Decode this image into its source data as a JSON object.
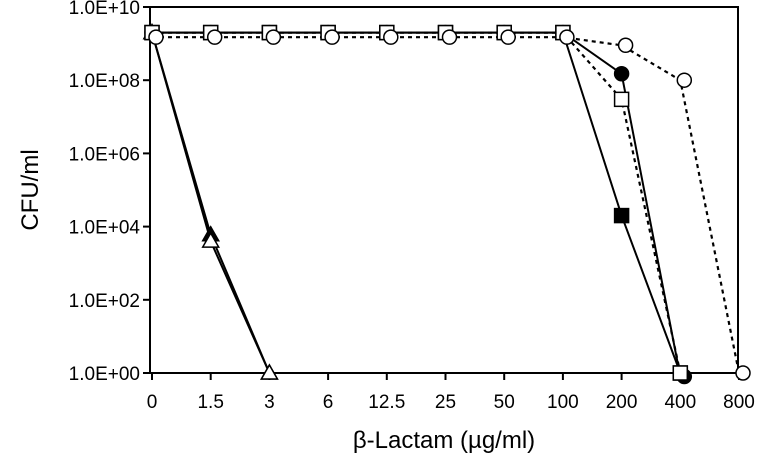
{
  "chart_data": {
    "type": "line",
    "title": "",
    "xlabel": "β-Lactam (µg/ml)",
    "ylabel": "CFU/ml",
    "x_scale": "categorical",
    "y_scale": "log",
    "categories": [
      "0",
      "1.5",
      "3",
      "6",
      "12.5",
      "25",
      "50",
      "100",
      "200",
      "400",
      "800"
    ],
    "ylim": [
      1,
      10000000000
    ],
    "y_ticks": [
      1,
      100,
      10000,
      1000000,
      100000000,
      10000000000
    ],
    "y_tick_labels": [
      "1.0E+00",
      "1.0E+02",
      "1.0E+04",
      "1.0E+06",
      "1.0E+08",
      "1.0E+10"
    ],
    "grid": false,
    "legend": "none",
    "series": [
      {
        "marker": "filled-square",
        "line": "solid",
        "points": [
          [
            0,
            2000000000.0
          ],
          [
            1,
            2000000000.0
          ],
          [
            2,
            2000000000.0
          ],
          [
            3,
            2000000000.0
          ],
          [
            4,
            2000000000.0
          ],
          [
            5,
            2000000000.0
          ],
          [
            6,
            2000000000.0
          ],
          [
            7,
            2000000000.0
          ],
          [
            8,
            20000
          ],
          [
            9,
            1
          ]
        ]
      },
      {
        "marker": "filled-circle",
        "line": "solid",
        "points": [
          [
            0,
            2000000000.0
          ],
          [
            1,
            2000000000.0
          ],
          [
            2,
            2000000000.0
          ],
          [
            3,
            2000000000.0
          ],
          [
            4,
            2000000000.0
          ],
          [
            5,
            2000000000.0
          ],
          [
            6,
            2000000000.0
          ],
          [
            7,
            2000000000.0
          ],
          [
            8,
            150000000
          ],
          [
            9,
            0.8
          ]
        ]
      },
      {
        "marker": "open-square",
        "line": "dotted",
        "points": [
          [
            0,
            2000000000.0
          ],
          [
            1,
            2000000000.0
          ],
          [
            2,
            2000000000.0
          ],
          [
            3,
            2000000000.0
          ],
          [
            4,
            2000000000.0
          ],
          [
            5,
            2000000000.0
          ],
          [
            6,
            2000000000.0
          ],
          [
            7,
            2000000000.0
          ],
          [
            8,
            30000000
          ],
          [
            9,
            1
          ]
        ]
      },
      {
        "marker": "open-circle",
        "line": "dotted",
        "points": [
          [
            0,
            1500000000.0
          ],
          [
            1,
            1500000000.0
          ],
          [
            2,
            1500000000.0
          ],
          [
            3,
            1500000000.0
          ],
          [
            4,
            1500000000.0
          ],
          [
            5,
            1500000000.0
          ],
          [
            6,
            1500000000.0
          ],
          [
            7,
            1500000000.0
          ],
          [
            8,
            900000000
          ],
          [
            9,
            100000000
          ],
          [
            10,
            1
          ]
        ]
      },
      {
        "marker": "filled-triangle",
        "line": "solid",
        "points": [
          [
            0,
            2000000000.0
          ],
          [
            1,
            6000
          ],
          [
            2,
            1
          ]
        ]
      },
      {
        "marker": "open-triangle",
        "line": "solid",
        "points": [
          [
            0,
            2000000000.0
          ],
          [
            1,
            4000
          ],
          [
            2,
            1
          ]
        ]
      }
    ]
  }
}
